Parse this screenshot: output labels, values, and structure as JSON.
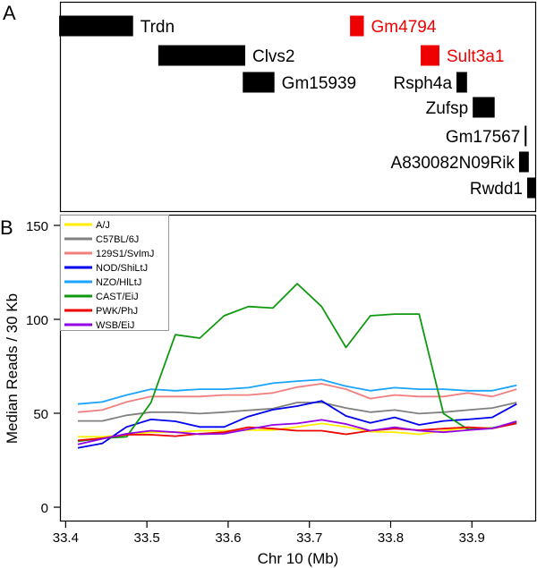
{
  "panel_a": {
    "letter": "A",
    "genes": [
      {
        "name": "Trdn",
        "start": 33.392,
        "end": 33.483,
        "row": 0,
        "label_side": "right",
        "color": "#000000"
      },
      {
        "name": "Gm4794",
        "start": 33.75,
        "end": 33.767,
        "row": 0,
        "label_side": "right",
        "color": "#ee0000"
      },
      {
        "name": "Clvs2",
        "start": 33.514,
        "end": 33.621,
        "row": 1,
        "label_side": "right",
        "color": "#000000"
      },
      {
        "name": "Sult3a1",
        "start": 33.837,
        "end": 33.86,
        "row": 1,
        "label_side": "right",
        "color": "#ee0000"
      },
      {
        "name": "Gm15939",
        "start": 33.618,
        "end": 33.657,
        "row": 2,
        "label_side": "right",
        "color": "#000000"
      },
      {
        "name": "Rsph4a",
        "start": 33.881,
        "end": 33.894,
        "row": 2,
        "label_side": "left",
        "color": "#000000"
      },
      {
        "name": "Zufsp",
        "start": 33.901,
        "end": 33.928,
        "row": 3,
        "label_side": "left",
        "color": "#000000"
      },
      {
        "name": "Gm17567",
        "start": 33.965,
        "end": 33.967,
        "row": 4,
        "label_side": "left",
        "color": "#000000"
      },
      {
        "name": "A830082N09Rik",
        "start": 33.958,
        "end": 33.97,
        "row": 5,
        "label_side": "left",
        "color": "#000000"
      },
      {
        "name": "Rwdd1",
        "start": 33.968,
        "end": 33.979,
        "row": 6,
        "label_side": "left",
        "color": "#000000"
      }
    ]
  },
  "chart_data": {
    "type": "line",
    "panel_letter": "B",
    "xlabel": "Chr 10 (Mb)",
    "ylabel": "Median Reads / 30 Kb",
    "xlim": [
      33.393,
      33.979
    ],
    "ylim": [
      -7.6,
      155.7
    ],
    "xticks": [
      33.4,
      33.5,
      33.6,
      33.7,
      33.8,
      33.9
    ],
    "xtick_labels": [
      "33.4",
      "33.5",
      "33.6",
      "33.7",
      "33.8",
      "33.9"
    ],
    "yticks": [
      0,
      50,
      100,
      150
    ],
    "ytick_labels": [
      "0",
      "50",
      "100",
      "150"
    ],
    "grid": false,
    "legend_position": "top-left",
    "x": [
      33.415,
      33.445,
      33.475,
      33.505,
      33.535,
      33.565,
      33.595,
      33.625,
      33.655,
      33.685,
      33.715,
      33.745,
      33.775,
      33.805,
      33.835,
      33.865,
      33.895,
      33.925,
      33.955
    ],
    "series": [
      {
        "name": "A/J",
        "color": "#ffee00",
        "values": [
          37.5,
          37.5,
          38.6,
          39.9,
          39.9,
          40.7,
          40.7,
          41.0,
          41.0,
          42.7,
          44.6,
          42.7,
          40.2,
          39.9,
          38.8,
          40.7,
          42.2,
          42.2,
          44.6
        ]
      },
      {
        "name": "C57BL/6J",
        "color": "#808080",
        "values": [
          45.9,
          45.9,
          48.9,
          50.6,
          50.6,
          49.8,
          50.6,
          51.6,
          52.5,
          55.7,
          55.7,
          52.8,
          50.6,
          51.7,
          49.8,
          50.6,
          51.7,
          52.8,
          55.7
        ]
      },
      {
        "name": "129S1/SvImJ",
        "color": "#f08080",
        "values": [
          50.6,
          51.7,
          56.0,
          58.9,
          58.9,
          58.9,
          59.7,
          59.7,
          60.8,
          63.9,
          65.7,
          62.8,
          57.8,
          59.7,
          58.9,
          58.9,
          60.8,
          58.9,
          62.8
        ]
      },
      {
        "name": "NOD/ShiLtJ",
        "color": "#0000ee",
        "values": [
          31.6,
          33.9,
          42.7,
          46.7,
          45.7,
          42.7,
          42.7,
          48.3,
          51.9,
          53.8,
          56.6,
          48.6,
          44.9,
          47.8,
          43.8,
          45.9,
          46.7,
          47.8,
          54.9
        ]
      },
      {
        "name": "NZO/HlLtJ",
        "color": "#1aa3ff",
        "values": [
          54.9,
          56.0,
          59.7,
          62.8,
          62.0,
          62.8,
          62.8,
          63.6,
          66.0,
          67.1,
          67.9,
          64.4,
          62.0,
          63.6,
          62.8,
          62.8,
          62.0,
          62.0,
          64.9
        ]
      },
      {
        "name": "CAST/EiJ",
        "color": "#109910",
        "values": [
          35.1,
          36.7,
          37.5,
          55.7,
          91.8,
          90.0,
          101.9,
          106.8,
          106.0,
          119.0,
          106.8,
          85.0,
          101.9,
          102.8,
          102.8,
          49.8,
          41.5,
          42.2,
          44.9
        ]
      },
      {
        "name": "PWK/PhJ",
        "color": "#ee0000",
        "values": [
          35.6,
          36.7,
          38.6,
          38.6,
          37.8,
          39.1,
          39.9,
          42.6,
          41.8,
          40.7,
          40.7,
          38.8,
          40.7,
          41.8,
          41.0,
          41.8,
          42.6,
          41.9,
          44.6
        ]
      },
      {
        "name": "WSB/EiJ",
        "color": "#9400e6",
        "values": [
          33.5,
          36.4,
          39.1,
          40.7,
          39.9,
          38.8,
          39.1,
          41.5,
          43.8,
          44.6,
          46.5,
          44.3,
          40.7,
          42.6,
          40.7,
          39.9,
          41.0,
          41.9,
          45.7
        ]
      }
    ]
  }
}
